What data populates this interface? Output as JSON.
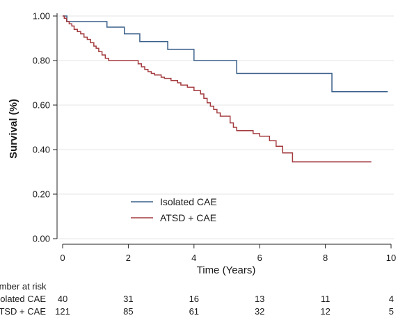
{
  "chart_data": {
    "type": "line",
    "subtype": "kaplan-meier step",
    "title": "",
    "xlabel": "Time (Years)",
    "ylabel": "Survival (%)",
    "xlim": [
      0,
      10
    ],
    "ylim": [
      0,
      1
    ],
    "x_ticks": [
      "0",
      "2",
      "4",
      "6",
      "8",
      "10"
    ],
    "y_ticks": [
      "0.00",
      "0.20",
      "0.40",
      "0.60",
      "0.80",
      "1.00"
    ],
    "grid": "horizontal",
    "legend_position": "bottom-left",
    "series": [
      {
        "name": "Isolated CAE",
        "color": "#3a5f8a",
        "x": [
          0,
          0.13,
          1.35,
          1.88,
          2.35,
          3.2,
          4.0,
          5.3,
          8.2,
          9.9
        ],
        "y": [
          1.0,
          0.975,
          0.95,
          0.92,
          0.885,
          0.85,
          0.8,
          0.742,
          0.66,
          0.66
        ]
      },
      {
        "name": "ATSD + CAE",
        "color": "#a33a3e",
        "x": [
          0,
          0.05,
          0.12,
          0.2,
          0.28,
          0.35,
          0.45,
          0.55,
          0.65,
          0.75,
          0.85,
          0.95,
          1.02,
          1.1,
          1.2,
          1.3,
          1.4,
          2.3,
          2.4,
          2.5,
          2.6,
          2.7,
          2.8,
          3.0,
          3.1,
          3.3,
          3.5,
          3.6,
          3.8,
          4.0,
          4.2,
          4.3,
          4.4,
          4.5,
          4.6,
          4.7,
          4.8,
          5.1,
          5.2,
          5.3,
          5.8,
          6.0,
          6.3,
          6.5,
          6.7,
          7.0,
          9.4
        ],
        "y": [
          1.0,
          0.99,
          0.975,
          0.965,
          0.955,
          0.94,
          0.93,
          0.92,
          0.905,
          0.895,
          0.88,
          0.865,
          0.855,
          0.84,
          0.825,
          0.81,
          0.8,
          0.785,
          0.772,
          0.76,
          0.75,
          0.742,
          0.735,
          0.725,
          0.72,
          0.71,
          0.7,
          0.69,
          0.68,
          0.665,
          0.65,
          0.63,
          0.61,
          0.595,
          0.58,
          0.565,
          0.55,
          0.52,
          0.5,
          0.485,
          0.472,
          0.46,
          0.44,
          0.415,
          0.385,
          0.345,
          0.345
        ]
      }
    ],
    "risk_table": {
      "header": "Number at risk",
      "times": [
        0,
        2,
        4,
        6,
        8,
        10
      ],
      "rows": [
        {
          "label": "Isolated CAE",
          "counts": [
            "40",
            "31",
            "16",
            "13",
            "11",
            "4"
          ]
        },
        {
          "label": "ATSD + CAE",
          "counts": [
            "121",
            "85",
            "61",
            "32",
            "12",
            "5"
          ]
        }
      ]
    }
  }
}
